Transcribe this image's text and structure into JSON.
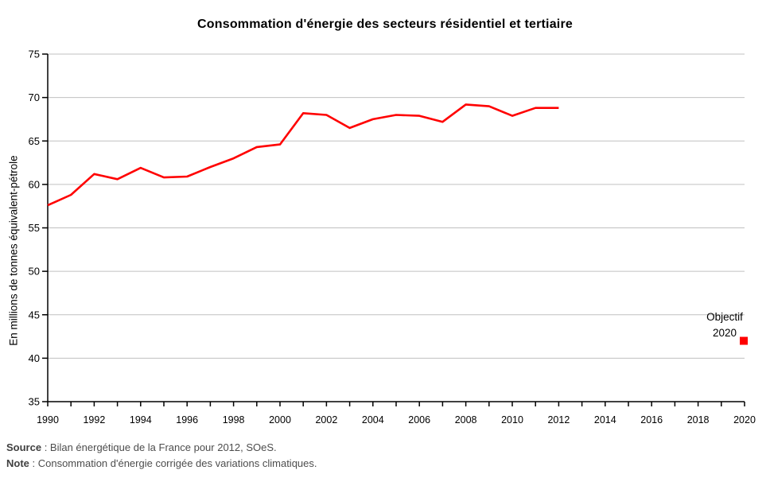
{
  "chart_data": {
    "type": "line",
    "title": "Consommation d'énergie des secteurs résidentiel et tertiaire",
    "ylabel": "En millions de tonnes équivalent-pétrole",
    "xlabel": "",
    "ylim": [
      35,
      75
    ],
    "xlim": [
      1990,
      2020
    ],
    "y_ticks": [
      35,
      40,
      45,
      50,
      55,
      60,
      65,
      70,
      75
    ],
    "x_major_ticks": [
      1990,
      1992,
      1994,
      1996,
      1998,
      2000,
      2002,
      2004,
      2006,
      2008,
      2010,
      2012,
      2014,
      2016,
      2018,
      2020
    ],
    "x_minor_tick_step": 1,
    "grid": "horizontal",
    "legend": "none",
    "series": [
      {
        "color": "#FF0000",
        "x": [
          1990,
          1991,
          1992,
          1993,
          1994,
          1995,
          1996,
          1997,
          1998,
          1999,
          2000,
          2001,
          2002,
          2003,
          2004,
          2005,
          2006,
          2007,
          2008,
          2009,
          2010,
          2011,
          2012
        ],
        "values": [
          57.6,
          58.8,
          61.2,
          60.6,
          61.9,
          60.8,
          60.9,
          62.0,
          63.0,
          64.3,
          64.6,
          68.2,
          68.0,
          66.5,
          67.5,
          68.0,
          67.9,
          67.2,
          69.2,
          69.0,
          67.9,
          68.8,
          68.8
        ]
      }
    ],
    "objective": {
      "label_line1": "Objectif",
      "label_line2": "2020",
      "x": 2020,
      "value": 42.0,
      "marker": "square",
      "color": "#FF0000"
    },
    "colors": {
      "line": "#FF0000",
      "grid": "#C0C0C0",
      "axis": "#000000"
    }
  },
  "footer": {
    "source_label": "Source",
    "source_text": " : Bilan énergétique de la France pour 2012, SOeS.",
    "note_label": "Note",
    "note_text": " : Consommation d'énergie corrigée des variations climatiques."
  }
}
